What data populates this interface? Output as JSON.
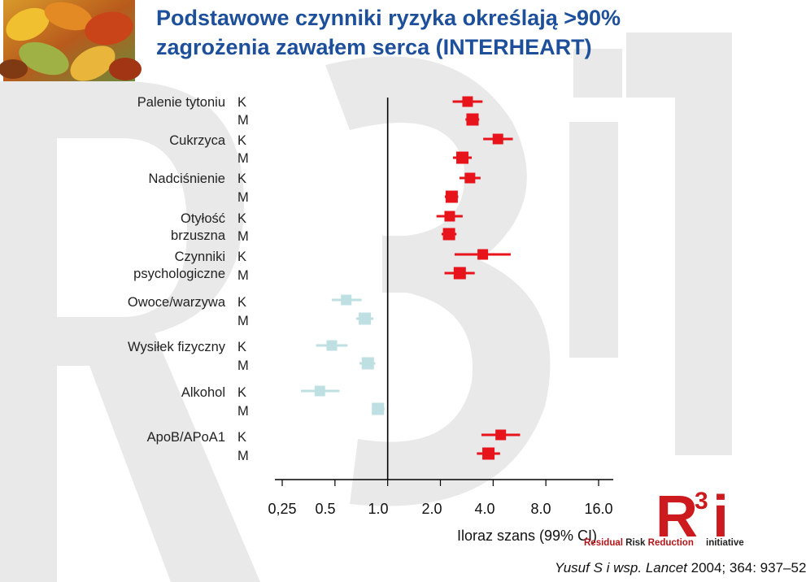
{
  "title": {
    "line1": "Podstawowe czynniki ryzyka określają >90%",
    "line2": "zagrożenia zawałem serca (INTERHEART)"
  },
  "chart_data": {
    "type": "scatter",
    "subtype": "forest-plot",
    "xlabel": "Iloraz szans (99% CI)",
    "x_scale": "log",
    "xlim": [
      0.25,
      16.0
    ],
    "x_tick_labels": [
      "0,25",
      "0.5",
      "1.0",
      "2.0",
      "4.0",
      "8.0",
      "16.0"
    ],
    "x_tick_values": [
      0.25,
      0.5,
      1.0,
      2.0,
      4.0,
      8.0,
      16.0
    ],
    "reference_line": 1.0,
    "factors": [
      {
        "label": "Palenie tytoniu",
        "rows": [
          {
            "sex": "K",
            "or": 2.86,
            "lo": 2.35,
            "hi": 3.48,
            "type": "risk"
          },
          {
            "sex": "M",
            "or": 3.05,
            "lo": 2.78,
            "hi": 3.33,
            "type": "risk"
          }
        ]
      },
      {
        "label": "Cukrzyca",
        "rows": [
          {
            "sex": "K",
            "or": 4.26,
            "lo": 3.51,
            "hi": 5.18,
            "type": "risk"
          },
          {
            "sex": "M",
            "or": 2.67,
            "lo": 2.36,
            "hi": 3.02,
            "type": "risk"
          }
        ]
      },
      {
        "label": "Nadciśnienie",
        "rows": [
          {
            "sex": "K",
            "or": 2.95,
            "lo": 2.57,
            "hi": 3.39,
            "type": "risk"
          },
          {
            "sex": "M",
            "or": 2.32,
            "lo": 2.12,
            "hi": 2.53,
            "type": "risk"
          }
        ]
      },
      {
        "label": "Otyłość brzuszna",
        "rows": [
          {
            "sex": "K",
            "or": 2.26,
            "lo": 1.9,
            "hi": 2.68,
            "type": "risk"
          },
          {
            "sex": "M",
            "or": 2.24,
            "lo": 2.03,
            "hi": 2.47,
            "type": "risk"
          }
        ]
      },
      {
        "label": "Czynniki psychologiczne",
        "rows": [
          {
            "sex": "K",
            "or": 3.49,
            "lo": 2.41,
            "hi": 5.04,
            "type": "risk"
          },
          {
            "sex": "M",
            "or": 2.58,
            "lo": 2.11,
            "hi": 3.14,
            "type": "risk"
          }
        ]
      },
      {
        "label": "Owoce/warzywa",
        "rows": [
          {
            "sex": "K",
            "or": 0.58,
            "lo": 0.48,
            "hi": 0.71,
            "type": "protective"
          },
          {
            "sex": "M",
            "or": 0.74,
            "lo": 0.66,
            "hi": 0.83,
            "type": "protective"
          }
        ]
      },
      {
        "label": "Wysiłek fizyczny",
        "rows": [
          {
            "sex": "K",
            "or": 0.48,
            "lo": 0.39,
            "hi": 0.59,
            "type": "protective"
          },
          {
            "sex": "M",
            "or": 0.77,
            "lo": 0.69,
            "hi": 0.85,
            "type": "protective"
          }
        ]
      },
      {
        "label": "Alkohol",
        "rows": [
          {
            "sex": "K",
            "or": 0.41,
            "lo": 0.32,
            "hi": 0.53,
            "type": "protective"
          },
          {
            "sex": "M",
            "or": 0.88,
            "lo": 0.81,
            "hi": 0.96,
            "type": "protective"
          }
        ]
      },
      {
        "label": "ApoB/APoA1",
        "rows": [
          {
            "sex": "K",
            "or": 4.42,
            "lo": 3.43,
            "hi": 5.7,
            "type": "risk"
          },
          {
            "sex": "M",
            "or": 3.76,
            "lo": 3.23,
            "hi": 4.38,
            "type": "risk"
          }
        ]
      }
    ],
    "colors": {
      "risk": "#e8141b",
      "protective": "#bfe0e2",
      "axis": "#000000"
    }
  },
  "citation": {
    "authors": "Yusuf S i wsp.",
    "journal": "Lancet",
    "details": "2004; 364: 937–52"
  },
  "logo": {
    "r_letter": "R",
    "superscript": "3",
    "i_letter": "i",
    "tagline_1": "Residual",
    "tagline_2": "Risk",
    "tagline_3": "Reduction",
    "initiative": "initiative"
  }
}
